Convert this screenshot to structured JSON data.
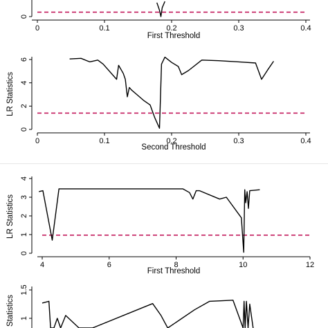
{
  "colors": {
    "series_line": "#000000",
    "threshold_line": "#c2185b",
    "axis": "#000000",
    "background": "#ffffff"
  },
  "chart_data": [
    {
      "type": "line",
      "xlabel": "First Threshold",
      "ylabel": "",
      "xlim": [
        0,
        0.4
      ],
      "xticks": [
        0,
        0.1,
        0.2,
        0.3,
        0.4
      ],
      "xtick_labels": [
        "0",
        "0.1",
        "0.2",
        "0.3",
        "0.4"
      ],
      "yticks": [
        0
      ],
      "ytick_labels": [
        "0"
      ],
      "threshold": 0.7,
      "grid": false,
      "series": [
        {
          "x": [
            0.178,
            0.182,
            0.184,
            0.186,
            0.19
          ],
          "y": [
            2.2,
            1.0,
            0.0,
            1.4,
            2.4
          ]
        }
      ]
    },
    {
      "type": "line",
      "xlabel": "Second Threshold",
      "ylabel": "LR Statistics",
      "xlim": [
        0,
        0.4
      ],
      "ylim": [
        0,
        6.2
      ],
      "xticks": [
        0,
        0.1,
        0.2,
        0.3,
        0.4
      ],
      "xtick_labels": [
        "0",
        "0.1",
        "0.2",
        "0.3",
        "0.4"
      ],
      "yticks": [
        0,
        2,
        4,
        6
      ],
      "ytick_labels": [
        "0",
        "2",
        "4",
        "6"
      ],
      "threshold": 1.4,
      "grid": false,
      "series": [
        {
          "x": [
            0.048,
            0.065,
            0.078,
            0.09,
            0.098,
            0.118,
            0.121,
            0.128,
            0.131,
            0.134,
            0.137,
            0.14,
            0.148,
            0.158,
            0.168,
            0.175,
            0.182,
            0.185,
            0.19,
            0.2,
            0.21,
            0.215,
            0.225,
            0.245,
            0.27,
            0.3,
            0.325,
            0.334,
            0.343,
            0.352
          ],
          "y": [
            6.05,
            6.1,
            5.8,
            5.95,
            5.6,
            4.3,
            5.5,
            4.8,
            4.3,
            2.8,
            3.6,
            3.4,
            3.0,
            2.5,
            2.1,
            1.0,
            0.1,
            5.6,
            6.2,
            5.75,
            5.4,
            4.7,
            5.05,
            5.95,
            5.9,
            5.8,
            5.7,
            4.3,
            5.1,
            5.85
          ]
        }
      ]
    },
    {
      "type": "line",
      "xlabel": "First Threshold",
      "ylabel": "LR Statistics",
      "xlim": [
        3.85,
        12
      ],
      "ylim": [
        0,
        4.1
      ],
      "xticks": [
        4,
        6,
        8,
        10,
        12
      ],
      "xtick_labels": [
        "4",
        "6",
        "8",
        "10",
        "12"
      ],
      "yticks": [
        0,
        1,
        2,
        3,
        4
      ],
      "ytick_labels": [
        "0",
        "1",
        "2",
        "3",
        "4"
      ],
      "threshold": 0.97,
      "grid": false,
      "series": [
        {
          "x": [
            3.9,
            4.02,
            4.3,
            4.5,
            8.2,
            8.4,
            8.5,
            8.6,
            8.7,
            9.3,
            9.5,
            9.95,
            10.02,
            10.05,
            10.08,
            10.12,
            10.16,
            10.2,
            10.5
          ],
          "y": [
            3.3,
            3.35,
            0.7,
            3.45,
            3.45,
            3.25,
            2.9,
            3.35,
            3.35,
            2.9,
            3.0,
            1.9,
            0.05,
            3.4,
            2.7,
            3.3,
            2.4,
            3.35,
            3.4
          ]
        }
      ]
    },
    {
      "type": "line",
      "xlabel": "",
      "ylabel": "LR Statistics",
      "ylim": [
        0.78,
        1.5
      ],
      "yticks": [
        1,
        1.5
      ],
      "ytick_labels": [
        "1",
        "1.5"
      ],
      "grid": false,
      "series": [
        {
          "x": [
            4.0,
            4.2,
            4.25,
            4.35,
            4.45,
            4.55,
            4.7,
            5.1,
            5.5,
            7.3,
            7.55,
            7.75,
            8.55,
            9.0,
            9.7,
            10.0,
            10.03,
            10.06,
            10.1,
            10.15,
            10.2,
            10.3
          ],
          "y": [
            1.27,
            1.3,
            0.8,
            0.8,
            1.0,
            0.8,
            1.05,
            0.8,
            0.8,
            1.26,
            1.05,
            0.8,
            1.15,
            1.3,
            1.32,
            0.8,
            1.3,
            0.8,
            1.3,
            0.8,
            1.25,
            0.8
          ]
        }
      ]
    }
  ]
}
